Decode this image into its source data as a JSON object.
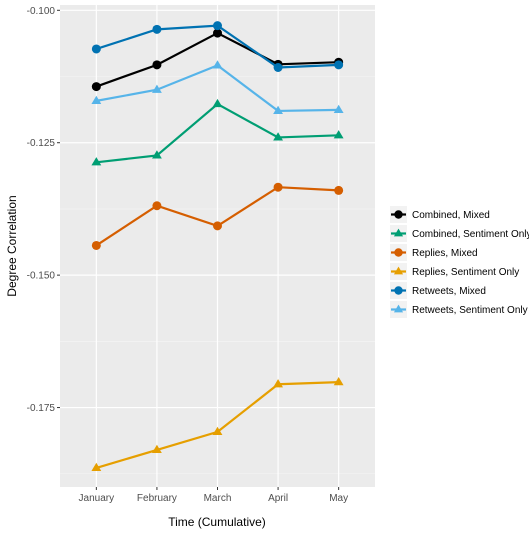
{
  "chart_data": {
    "type": "line",
    "title": "",
    "xlabel": "Time (Cumulative)",
    "ylabel": "Degree Correlation",
    "categories": [
      "January",
      "February",
      "March",
      "April",
      "May"
    ],
    "ylim": [
      -0.19,
      -0.099
    ],
    "yticks": [
      -0.1,
      -0.125,
      -0.15,
      -0.175
    ],
    "ytick_labels": [
      "-0.100",
      "-0.125",
      "-0.150",
      "-0.175"
    ],
    "grid": true,
    "legend_position": "right",
    "series": [
      {
        "name": "Combined, Mixed",
        "marker": "circle",
        "color": "#000000",
        "values": [
          -0.1144,
          -0.1103,
          -0.1043,
          -0.1102,
          -0.1098
        ]
      },
      {
        "name": "Combined, Sentiment Only",
        "marker": "triangle",
        "color": "#009E73",
        "values": [
          -0.1287,
          -0.1274,
          -0.1177,
          -0.124,
          -0.1236
        ]
      },
      {
        "name": "Replies, Mixed",
        "marker": "circle",
        "color": "#D55E00",
        "values": [
          -0.1444,
          -0.1369,
          -0.1407,
          -0.1334,
          -0.134
        ]
      },
      {
        "name": "Replies, Sentiment Only",
        "marker": "triangle",
        "color": "#E69F00",
        "values": [
          -0.1864,
          -0.183,
          -0.1796,
          -0.1706,
          -0.1702
        ]
      },
      {
        "name": "Retweets, Mixed",
        "marker": "circle",
        "color": "#0072B2",
        "values": [
          -0.1073,
          -0.1036,
          -0.1029,
          -0.1108,
          -0.1103
        ]
      },
      {
        "name": "Retweets, Sentiment Only",
        "marker": "triangle",
        "color": "#56B4E9",
        "values": [
          -0.1171,
          -0.115,
          -0.1104,
          -0.119,
          -0.1188
        ]
      }
    ]
  }
}
